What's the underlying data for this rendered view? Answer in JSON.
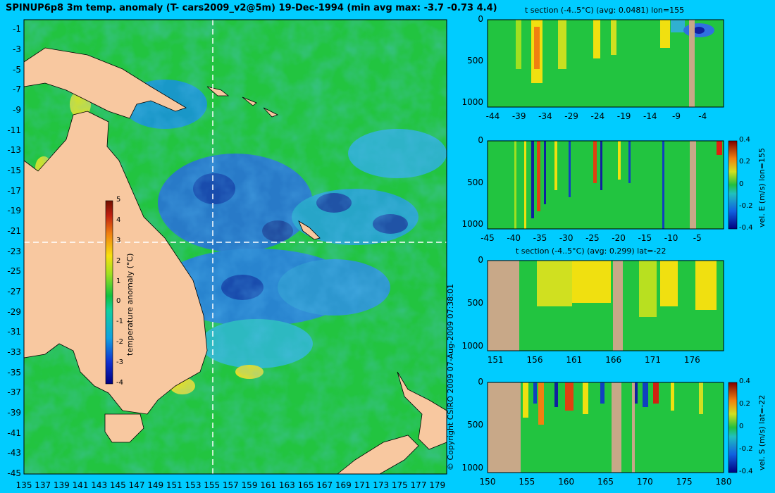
{
  "main_title": "SPINUP6p8 3m temp. anomaly (T- cars2009_v2@5m) 19-Dec-1994 (min avg max: -3.7 -0.73 4.4)",
  "copyright": "© Copyright CSIRO 2009   07-Aug-2009 07:38:01",
  "colors": {
    "background": "#00ccff",
    "land": "#f8c8a0",
    "section_land": "#c8a888",
    "ocean_base": "#22c440"
  },
  "chart_data": [
    {
      "type": "heatmap",
      "name": "map",
      "title": "SPINUP6p8 3m temp. anomaly (T- cars2009_v2@5m) 19-Dec-1994 (min avg max: -3.7 -0.73 4.4)",
      "x_ticks": [
        "135",
        "137",
        "139",
        "141",
        "143",
        "145",
        "147",
        "149",
        "151",
        "153",
        "155",
        "157",
        "159",
        "161",
        "163",
        "165",
        "167",
        "169",
        "171",
        "173",
        "175",
        "177",
        "179"
      ],
      "y_ticks": [
        "-1",
        "-3",
        "-5",
        "-7",
        "-9",
        "-11",
        "-13",
        "-15",
        "-17",
        "-19",
        "-21",
        "-23",
        "-25",
        "-27",
        "-29",
        "-31",
        "-33",
        "-35",
        "-37",
        "-39",
        "-41",
        "-43",
        "-45"
      ],
      "xlim": [
        135,
        180
      ],
      "ylim": [
        -45,
        0
      ],
      "section_lines": {
        "lon": 155,
        "lat": -22
      },
      "colorbar": {
        "label": "temperature anomaly (°C)",
        "ticks": [
          "5",
          "4",
          "3",
          "2",
          "1",
          "0",
          "-1",
          "-2",
          "-3",
          "-4"
        ],
        "range": [
          -4,
          5
        ]
      }
    },
    {
      "type": "heatmap",
      "name": "t-section-lon",
      "title": "t section (-4..5°C) (avg: 0.0481) lon=155",
      "x_ticks": [
        "-44",
        "-39",
        "-34",
        "-29",
        "-24",
        "-19",
        "-14",
        "-9",
        "-4"
      ],
      "y_ticks": [
        "0",
        "500",
        "1000"
      ],
      "xlim": [
        -45,
        0
      ],
      "ylim": [
        0,
        1050
      ]
    },
    {
      "type": "heatmap",
      "name": "vel-e-section",
      "title": "",
      "x_ticks": [
        "-45",
        "-40",
        "-35",
        "-30",
        "-25",
        "-20",
        "-15",
        "-10",
        "-5"
      ],
      "y_ticks": [
        "0",
        "500",
        "1000"
      ],
      "xlim": [
        -45,
        0
      ],
      "ylim": [
        0,
        1050
      ],
      "colorbar": {
        "label": "vel. E (m/s) lon=155",
        "ticks": [
          "0.4",
          "0.2",
          "0",
          "-0.2",
          "-0.4"
        ],
        "range": [
          -0.4,
          0.4
        ]
      }
    },
    {
      "type": "heatmap",
      "name": "t-section-lat",
      "title": "t section (-4..5°C) (avg: 0.299) lat=-22",
      "x_ticks": [
        "151",
        "156",
        "161",
        "166",
        "171",
        "176"
      ],
      "y_ticks": [
        "0",
        "500",
        "1000"
      ],
      "xlim": [
        150,
        180
      ],
      "ylim": [
        0,
        1050
      ]
    },
    {
      "type": "heatmap",
      "name": "vel-s-section",
      "title": "",
      "x_ticks": [
        "150",
        "155",
        "160",
        "165",
        "170",
        "175",
        "180"
      ],
      "y_ticks": [
        "0",
        "500",
        "1000"
      ],
      "xlim": [
        150,
        180
      ],
      "ylim": [
        0,
        1050
      ],
      "colorbar": {
        "label": "vel. S (m/s) lat=-22",
        "ticks": [
          "0.4",
          "0.2",
          "0",
          "-0.2",
          "-0.4"
        ],
        "range": [
          -0.4,
          0.4
        ]
      }
    }
  ]
}
